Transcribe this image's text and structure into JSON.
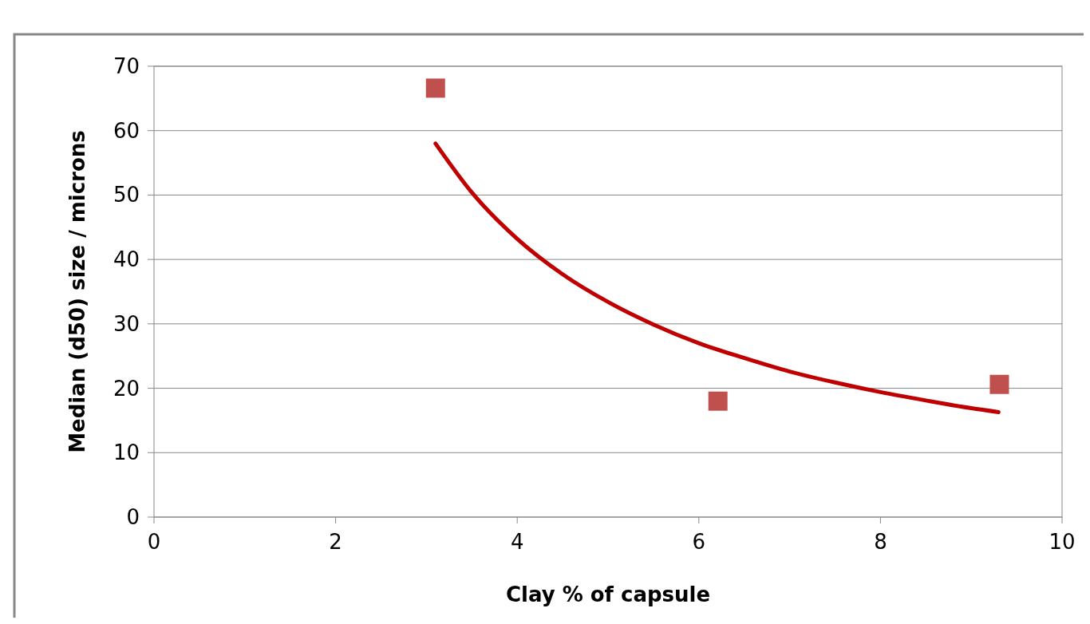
{
  "chart_data": {
    "type": "scatter",
    "xlabel": "Clay % of capsule",
    "ylabel": "Median (d50) size / microns",
    "xlim": [
      0,
      10
    ],
    "xticks": [
      0,
      2,
      4,
      6,
      8,
      10
    ],
    "ylim": [
      0,
      70
    ],
    "yticks": [
      0,
      10,
      20,
      30,
      40,
      50,
      60,
      70
    ],
    "grid": "y",
    "series": [
      {
        "type": "scatter",
        "color": "#c0504d",
        "marker": "square",
        "x": [
          3.1,
          6.21,
          9.31
        ],
        "values": [
          66.6,
          18.0,
          20.6
        ]
      },
      {
        "type": "line",
        "color": "#c00000",
        "marker": "none",
        "x": [
          3.1,
          3.5,
          4,
          4.5,
          5,
          5.5,
          6,
          6.5,
          7,
          7.5,
          8,
          8.5,
          9,
          9.3
        ],
        "values": [
          58,
          50.4,
          43.2,
          37.7,
          33.4,
          29.9,
          27.0,
          24.7,
          22.6,
          20.9,
          19.4,
          18.1,
          16.9,
          16.3
        ]
      }
    ]
  }
}
